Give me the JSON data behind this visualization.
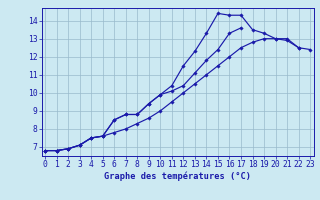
{
  "title": "Graphe des températures (°C)",
  "bg_color": "#cce9f2",
  "line_color": "#1a1aaa",
  "grid_color": "#99bbcc",
  "x_hours": [
    0,
    1,
    2,
    3,
    4,
    5,
    6,
    7,
    8,
    9,
    10,
    11,
    12,
    13,
    14,
    15,
    16,
    17,
    18,
    19,
    20,
    21,
    22,
    23
  ],
  "line1": [
    6.8,
    6.8,
    6.9,
    7.1,
    7.5,
    7.6,
    8.5,
    8.8,
    8.8,
    9.4,
    9.9,
    10.1,
    10.4,
    11.1,
    11.8,
    12.4,
    13.3,
    13.6,
    null,
    null,
    null,
    null,
    null,
    null
  ],
  "line2": [
    6.8,
    6.8,
    6.9,
    7.1,
    7.5,
    7.6,
    7.8,
    8.0,
    8.3,
    8.6,
    9.0,
    9.5,
    10.0,
    10.5,
    11.0,
    11.5,
    12.0,
    12.5,
    12.8,
    13.0,
    13.0,
    12.9,
    12.5,
    12.4
  ],
  "line3": [
    6.8,
    6.8,
    6.9,
    7.1,
    7.5,
    7.6,
    8.5,
    8.8,
    8.8,
    9.4,
    9.9,
    10.4,
    11.5,
    12.3,
    13.3,
    14.4,
    14.3,
    14.3,
    13.5,
    13.3,
    13.0,
    13.0,
    12.5,
    null
  ],
  "ylim_min": 6.5,
  "ylim_max": 14.7,
  "xlim_min": -0.3,
  "xlim_max": 23.3,
  "yticks": [
    7,
    8,
    9,
    10,
    11,
    12,
    13,
    14
  ],
  "tick_fontsize": 5.8,
  "xlabel_fontsize": 6.2,
  "marker_size": 1.8,
  "linewidth": 0.85
}
